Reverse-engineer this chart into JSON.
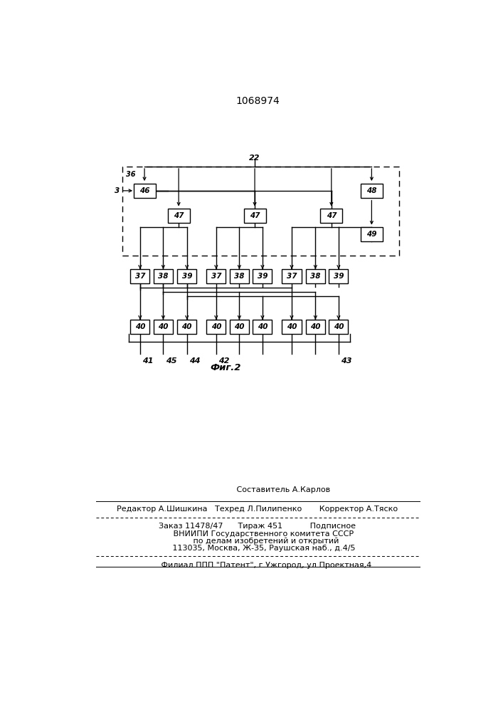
{
  "title": "1068974",
  "fig_label": "Фиг.2",
  "bg": "#ffffff",
  "row2_labels": [
    "37",
    "38",
    "39",
    "37",
    "38",
    "39",
    "37",
    "38",
    "39"
  ],
  "row3_labels": [
    "40",
    "40",
    "40",
    "40",
    "40",
    "40",
    "40",
    "40",
    "40"
  ],
  "footer_line1": "                     Составитель А.Карлов",
  "footer_line2": "Редактор А.Шишкина   Техред Л.Пилипенко       Корректор А.Тяско",
  "footer_line3": "Заказ 11478/47      Тираж 451           Подписное",
  "footer_line4": "     ВНИИПИ Государственного комитета СССР",
  "footer_line5": "       по делам изобретений и открытий",
  "footer_line6": "     113035, Москва, Ж-35, Раушская наб., д.4/5",
  "footer_line7": "       Филиал ППП \"Патент\", г.Ужгород, ул.Проектная,4"
}
